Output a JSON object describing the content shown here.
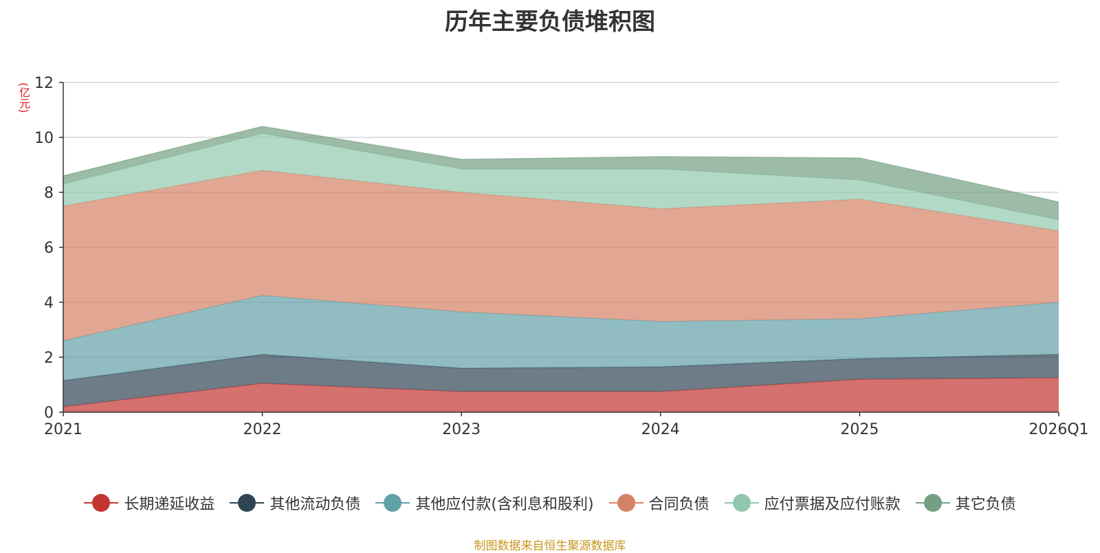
{
  "chart_data": {
    "type": "area",
    "stacked": true,
    "title": "历年主要负债堆积图",
    "ylabel": "(亿元)",
    "xlabel": "",
    "categories": [
      "2021",
      "2022",
      "2023",
      "2024",
      "2025",
      "2026Q1"
    ],
    "ylim": [
      0,
      12
    ],
    "yticks": [
      0,
      2,
      4,
      6,
      8,
      10,
      12
    ],
    "grid": true,
    "legend_position": "bottom",
    "series": [
      {
        "name": "长期递延收益",
        "color": "#c23531",
        "values": [
          0.2,
          1.05,
          0.75,
          0.75,
          1.2,
          1.25
        ]
      },
      {
        "name": "其他流动负债",
        "color": "#2f4554",
        "values": [
          0.95,
          1.05,
          0.85,
          0.9,
          0.75,
          0.85
        ]
      },
      {
        "name": "其他应付款(含利息和股利)",
        "color": "#61a0a8",
        "values": [
          1.45,
          2.15,
          2.05,
          1.65,
          1.45,
          1.9
        ]
      },
      {
        "name": "合同负债",
        "color": "#d48265",
        "values": [
          4.9,
          4.55,
          4.35,
          4.1,
          4.35,
          2.6
        ]
      },
      {
        "name": "应付票据及应付账款",
        "color": "#91c7ae",
        "values": [
          0.8,
          1.35,
          0.85,
          1.45,
          0.7,
          0.4
        ]
      },
      {
        "name": "其它负债",
        "color": "#749f83",
        "values": [
          0.3,
          0.25,
          0.35,
          0.45,
          0.8,
          0.65
        ]
      }
    ]
  },
  "source_note": "制图数据来自恒生聚源数据库"
}
